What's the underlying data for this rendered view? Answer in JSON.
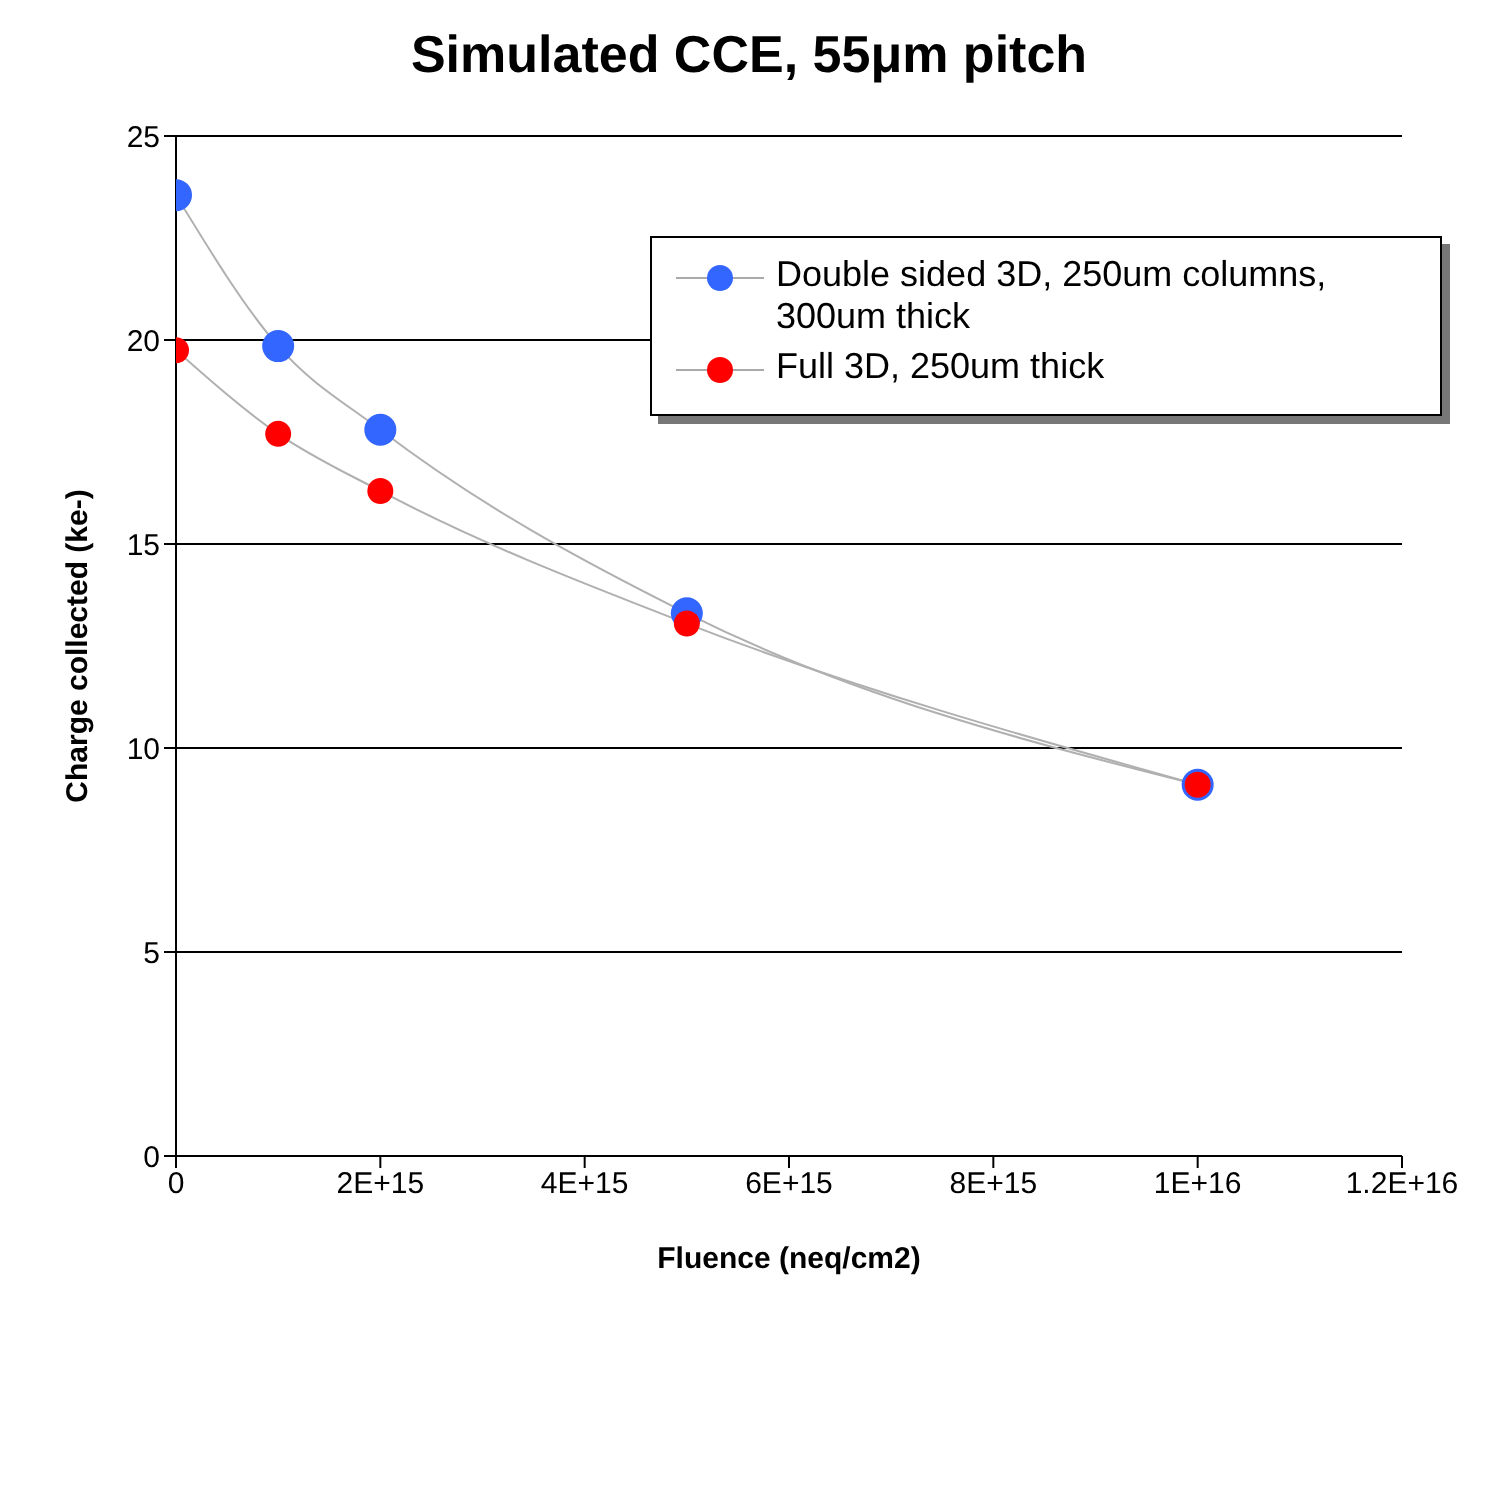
{
  "chart_data": {
    "type": "line",
    "title": "Simulated CCE, 55μm pitch",
    "xlabel": "Fluence (neq/cm2)",
    "ylabel": "Charge collected (ke-)",
    "x": [
      0,
      1000000000000000.0,
      2000000000000000.0,
      5000000000000000.0,
      1e+16
    ],
    "series": [
      {
        "name": "Double sided 3D, 250um columns, 300um thick",
        "color": "#3366ff",
        "values": [
          23.55,
          19.85,
          17.8,
          13.3,
          9.1
        ]
      },
      {
        "name": "Full 3D, 250um thick",
        "color": "#ff0000",
        "values": [
          19.75,
          17.7,
          16.3,
          13.05,
          9.1
        ]
      }
    ],
    "xlim": [
      0,
      1.2e+16
    ],
    "xticks": [
      0,
      {
        "value": 2000000000000000.0,
        "label": "2E+15"
      },
      {
        "value": 4000000000000000.0,
        "label": "4E+15"
      },
      {
        "value": 6000000000000000.0,
        "label": "6E+15"
      },
      {
        "value": 8000000000000000.0,
        "label": "8E+15"
      },
      {
        "value": 1e+16,
        "label": "1E+16"
      },
      {
        "value": 1.2e+16,
        "label": "1.2E+16"
      }
    ],
    "ylim": [
      0,
      25
    ],
    "yticks": [
      0,
      5,
      10,
      15,
      20,
      25
    ],
    "grid": "y",
    "legend": "top right",
    "marker": "circle",
    "line_style": "solid"
  }
}
